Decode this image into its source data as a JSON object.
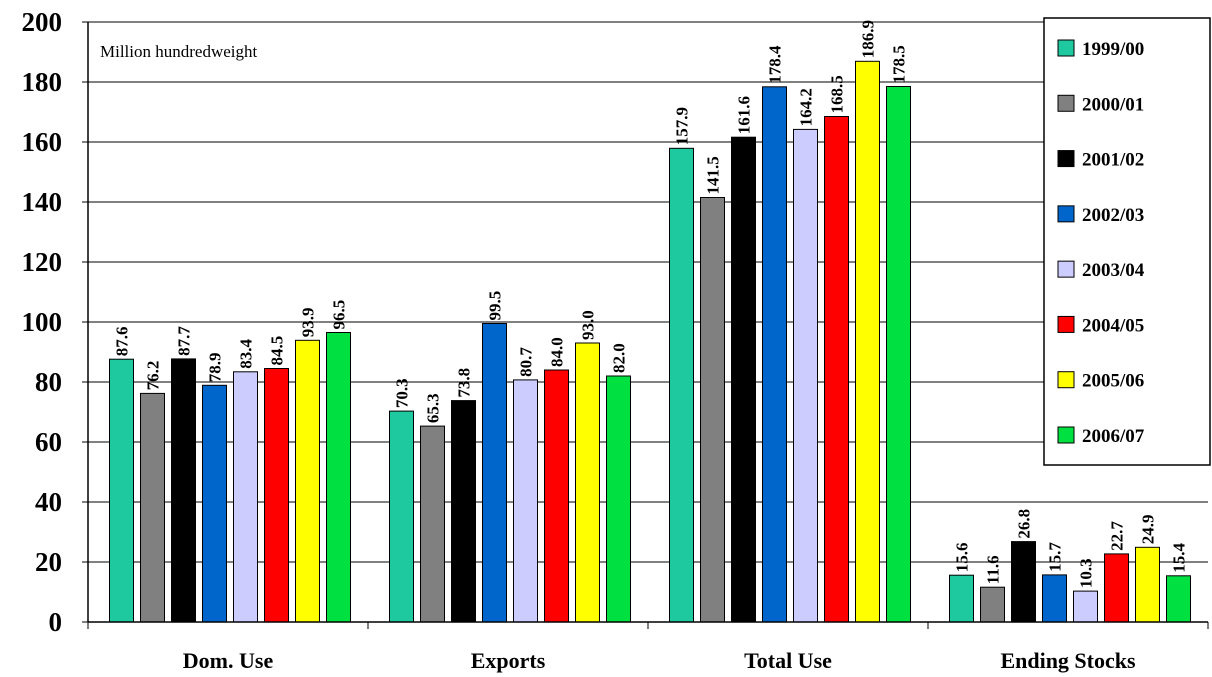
{
  "chart_data": {
    "type": "bar",
    "unit_note": "Million hundredweight",
    "categories": [
      "Dom. Use",
      "Exports",
      "Total Use",
      "Ending Stocks"
    ],
    "ylim": [
      0,
      200
    ],
    "yticks": [
      0,
      20,
      40,
      60,
      80,
      100,
      120,
      140,
      160,
      180,
      200
    ],
    "grid": true,
    "legend_position": "right",
    "series": [
      {
        "name": "1999/00",
        "color": "#1FC9A0",
        "values": [
          87.6,
          70.3,
          157.9,
          15.6
        ],
        "labels": [
          "87.6",
          "70.3",
          "157.9",
          "15.6"
        ]
      },
      {
        "name": "2000/01",
        "color": "#808080",
        "values": [
          76.2,
          65.3,
          141.5,
          11.6
        ],
        "labels": [
          "76.2",
          "65.3",
          "141.5",
          "11.6"
        ]
      },
      {
        "name": "2001/02",
        "color": "#000000",
        "values": [
          87.7,
          73.8,
          161.6,
          26.8
        ],
        "labels": [
          "87.7",
          "73.8",
          "161.6",
          "26.8"
        ]
      },
      {
        "name": "2002/03",
        "color": "#0066CC",
        "values": [
          78.9,
          99.5,
          178.4,
          15.7
        ],
        "labels": [
          "78.9",
          "99.5",
          "178.4",
          "15.7"
        ]
      },
      {
        "name": "2003/04",
        "color": "#CCCCFF",
        "values": [
          83.4,
          80.7,
          164.2,
          10.3
        ],
        "labels": [
          "83.4",
          "80.7",
          "164.2",
          "10.3"
        ]
      },
      {
        "name": "2004/05",
        "color": "#FF0000",
        "values": [
          84.5,
          84.0,
          168.5,
          22.7
        ],
        "labels": [
          "84.5",
          "84.0",
          "168.5",
          "22.7"
        ]
      },
      {
        "name": "2005/06",
        "color": "#FFFF00",
        "values": [
          93.9,
          93.0,
          186.9,
          24.9
        ],
        "labels": [
          "93.9",
          "93.0",
          "186.9",
          "24.9"
        ]
      },
      {
        "name": "2006/07",
        "color": "#00E040",
        "values": [
          96.5,
          82.0,
          178.5,
          15.4
        ],
        "labels": [
          "96.5",
          "82.0",
          "178.5",
          "15.4"
        ]
      }
    ]
  }
}
